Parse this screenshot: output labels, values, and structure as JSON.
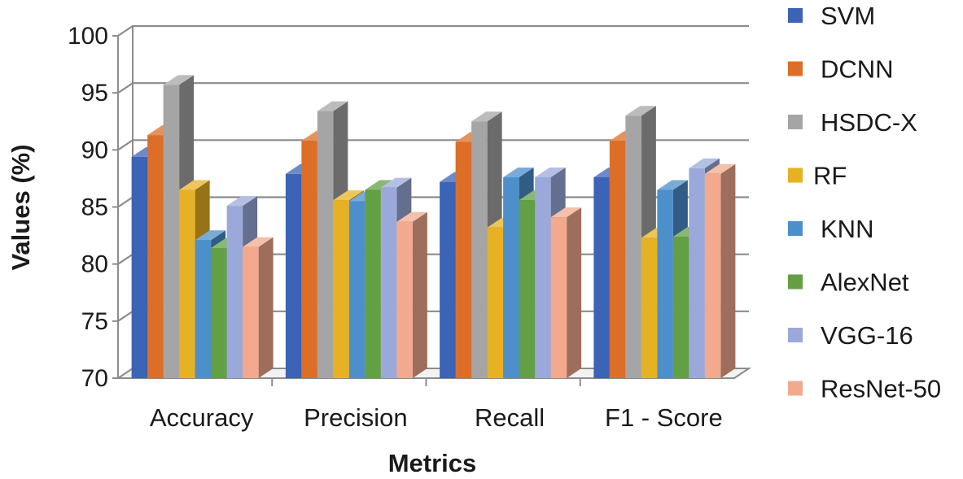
{
  "chart_data": {
    "type": "bar",
    "style": "3d-clustered-column",
    "title": "",
    "xlabel": "Metrics",
    "ylabel": "Values (%)",
    "ylim": [
      70,
      100
    ],
    "yticks": [
      70,
      75,
      80,
      85,
      90,
      95,
      100
    ],
    "grid": true,
    "legend_position": "right",
    "categories": [
      "Accuracy",
      "Precision",
      "Recall",
      "F1 - Score"
    ],
    "series": [
      {
        "name": "SVM",
        "color": "#3b63b6",
        "values": [
          89.4,
          87.9,
          87.2,
          87.6
        ]
      },
      {
        "name": "DCNN",
        "color": "#dd6e27",
        "values": [
          91.3,
          90.8,
          90.7,
          90.8
        ]
      },
      {
        "name": "HSDC-X",
        "color": "#a5a5a5",
        "values": [
          95.7,
          93.4,
          92.5,
          93.0
        ]
      },
      {
        "name": "RF",
        "color": "#e7b124",
        "values": [
          86.5,
          85.6,
          83.2,
          82.3
        ]
      },
      {
        "name": "KNN",
        "color": "#4c8fcb",
        "values": [
          82.1,
          85.5,
          87.6,
          86.5
        ]
      },
      {
        "name": "AlexNet",
        "color": "#63a045",
        "values": [
          81.4,
          86.5,
          85.6,
          82.4
        ]
      },
      {
        "name": "VGG-16",
        "color": "#9aa9da",
        "values": [
          85.1,
          86.7,
          87.6,
          88.4
        ]
      },
      {
        "name": "ResNet-50",
        "color": "#f2a98e",
        "values": [
          81.5,
          83.7,
          84.1,
          87.9
        ]
      }
    ]
  }
}
